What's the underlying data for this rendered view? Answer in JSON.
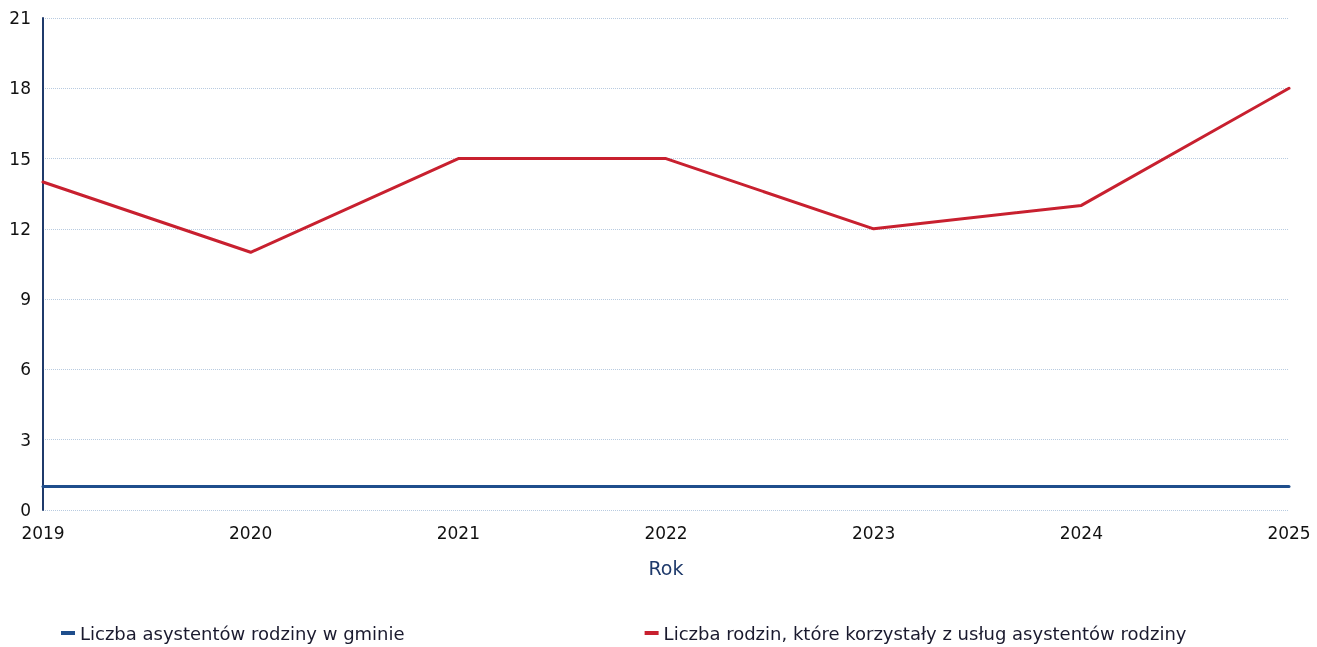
{
  "chart_data": {
    "type": "line",
    "xlabel": "Rok",
    "categories": [
      "2019",
      "2020",
      "2021",
      "2022",
      "2023",
      "2024",
      "2025"
    ],
    "series": [
      {
        "name": "Liczba asystentów rodziny w gminie",
        "color": "#1f4e8c",
        "values": [
          1,
          1,
          1,
          1,
          1,
          1,
          1
        ]
      },
      {
        "name": "Liczba rodzin, które korzystały z usług asystentów rodziny",
        "color": "#c8202f",
        "values": [
          14,
          11,
          15,
          15,
          12,
          13,
          18
        ]
      }
    ],
    "ylim": [
      0,
      21
    ],
    "yticks": [
      0,
      3,
      6,
      9,
      12,
      15,
      18,
      21
    ],
    "grid": "y",
    "legend": "bottom",
    "marker": "none",
    "line_style": "solid"
  }
}
